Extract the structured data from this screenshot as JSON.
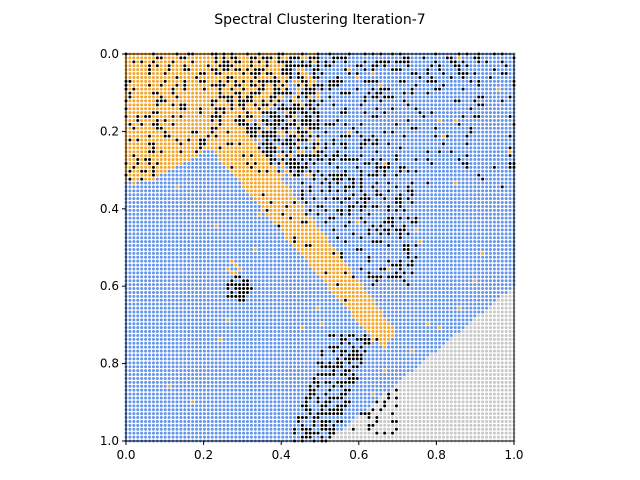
{
  "chart_data": {
    "type": "scatter",
    "title": "Spectral Clustering Iteration-7",
    "xlabel": "",
    "ylabel": "",
    "xlim": [
      0.0,
      1.0
    ],
    "ylim": [
      1.0,
      0.0
    ],
    "y_inverted": true,
    "grid": false,
    "legend": "none",
    "xticks": [
      "0.0",
      "0.2",
      "0.4",
      "0.6",
      "0.8",
      "1.0"
    ],
    "yticks": [
      "0.0",
      "0.2",
      "0.4",
      "0.6",
      "0.8",
      "1.0"
    ],
    "sampling": {
      "grid_points_per_axis": 100,
      "x_range": [
        0.0,
        1.0
      ],
      "y_range": [
        0.0,
        1.0
      ],
      "note": "Dense regular grid of points; each point coloured by its cluster label."
    },
    "series": [
      {
        "color": "#6495ED",
        "description": "background region covering most of the image"
      },
      {
        "color": "#F5A52A",
        "description": "upper-left corner band and diagonal streak from (0.27,0.23) to (0.66,0.72)"
      },
      {
        "color": "#000000",
        "description": "upper-middle dense patch around x 0.25-0.55, y 0.05-0.35, scattered points toward the right, small blob near (0.29,0.61), curved lower band x 0.48-0.7, y 0.72-1.0"
      },
      {
        "color": "#C8C8C8",
        "description": "lower-right corner region beneath a diagonal boundary from (0.52,1.0) up to (1.0,0.6)"
      }
    ]
  }
}
